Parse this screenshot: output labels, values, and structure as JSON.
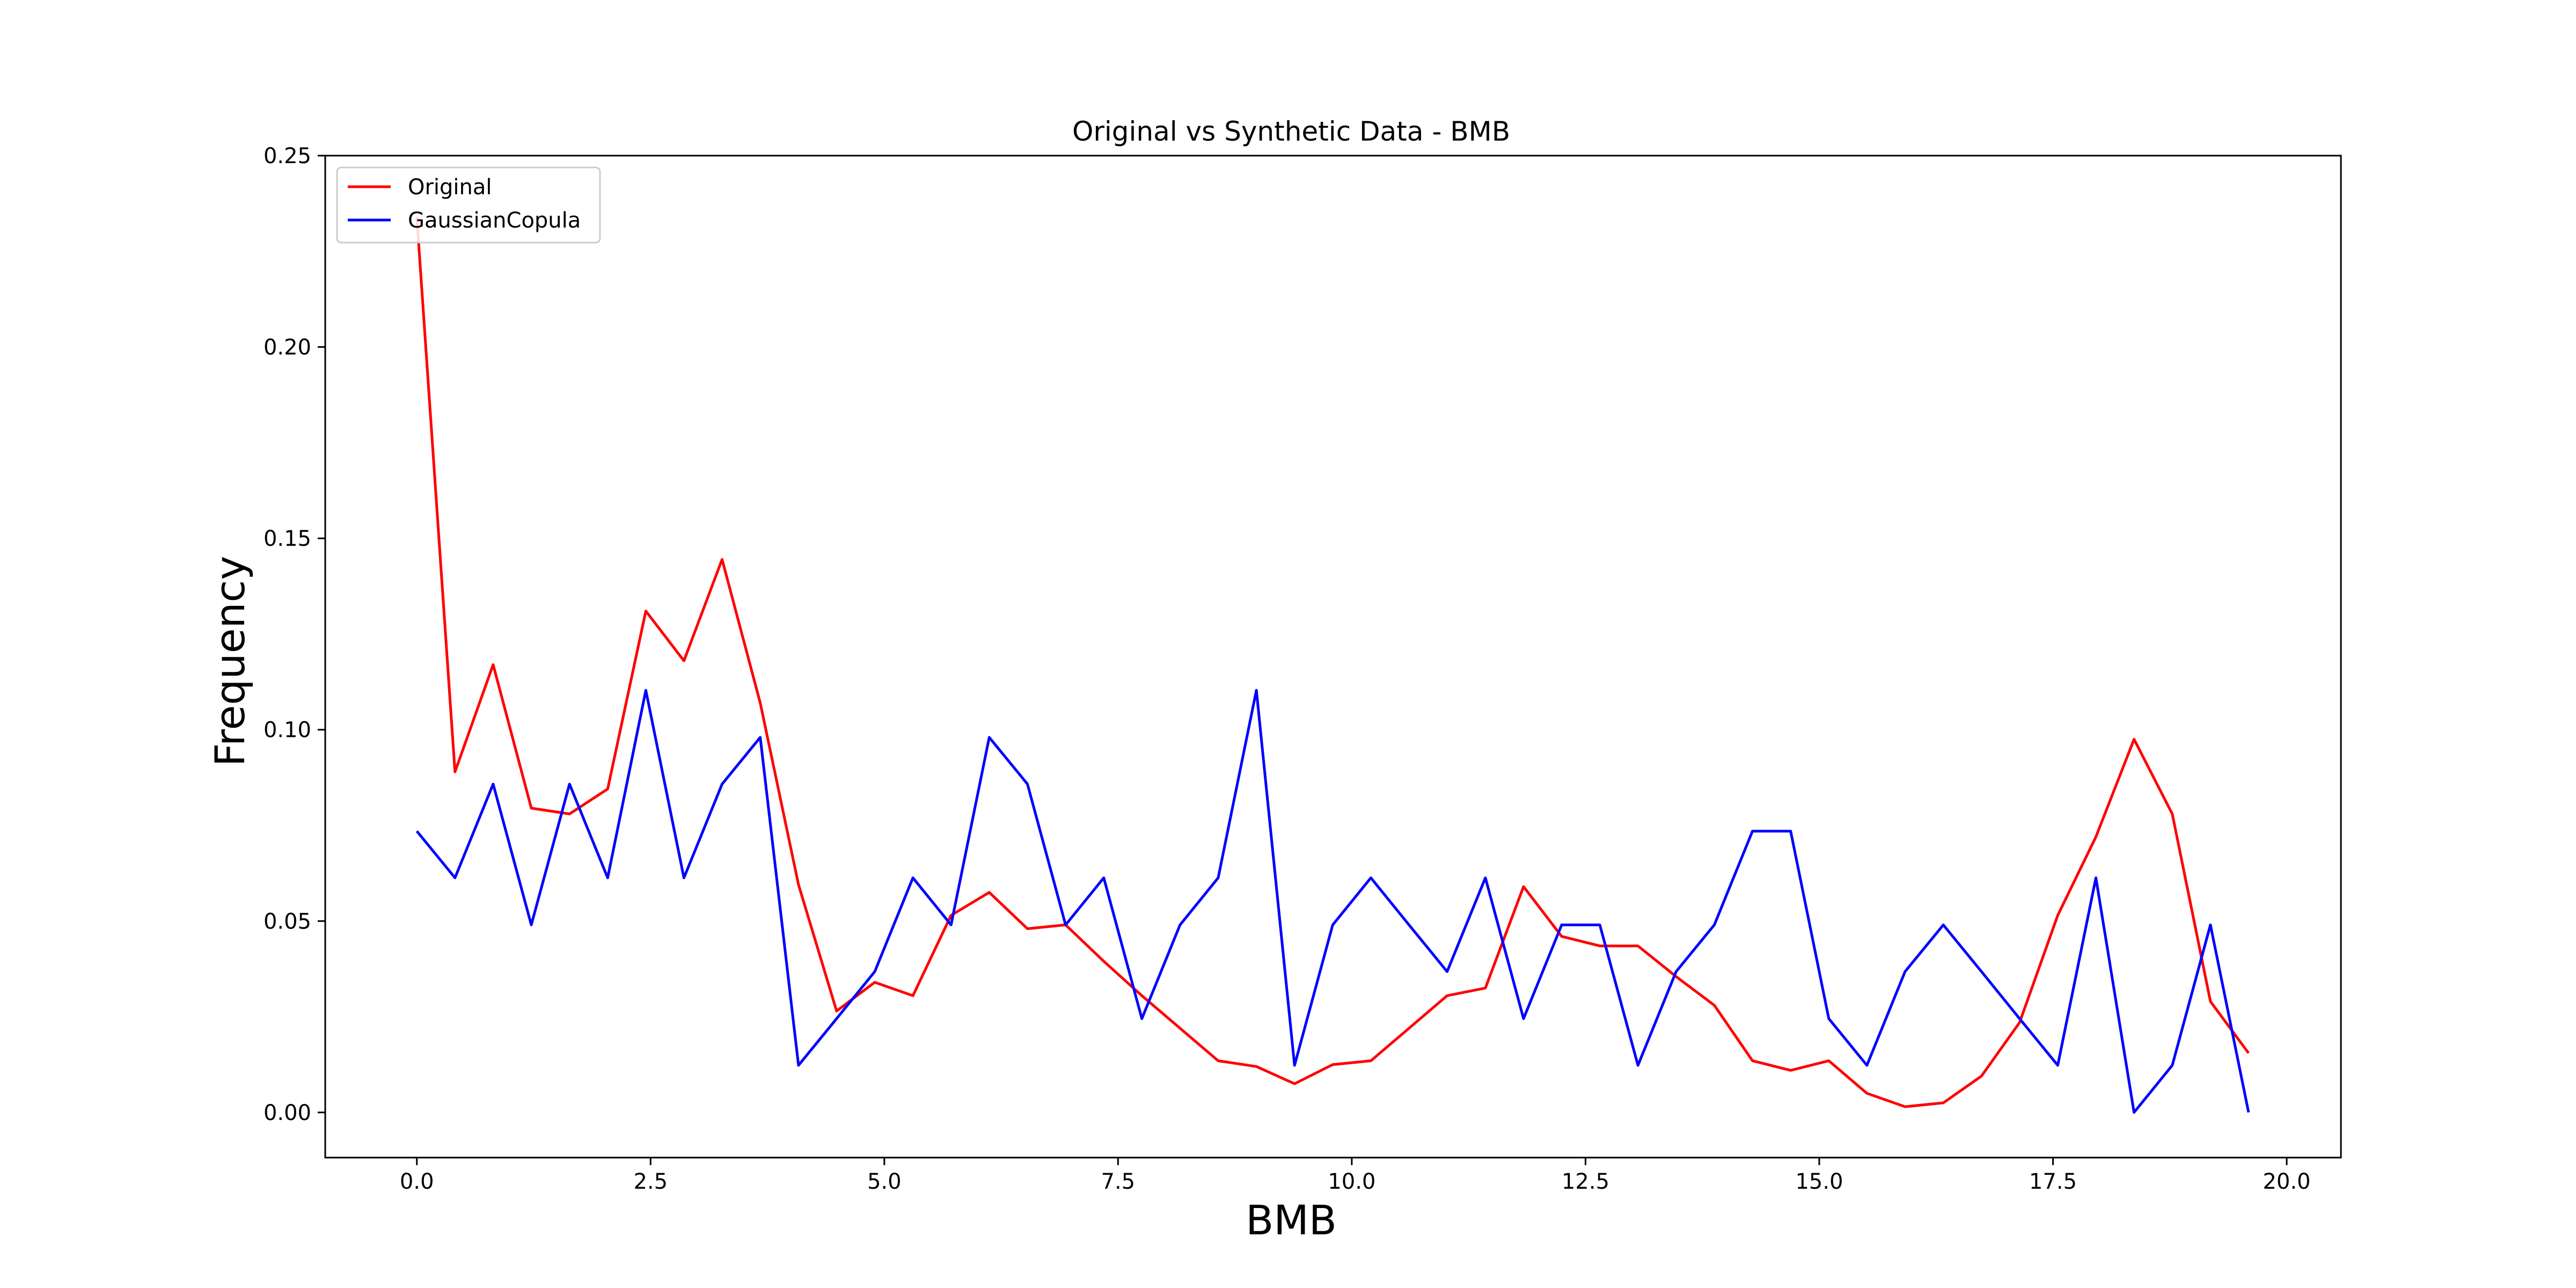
{
  "chart_data": {
    "type": "line",
    "title": "Original vs Synthetic Data - BMB",
    "xlabel": "BMB",
    "ylabel": "Frequency",
    "xlim": [
      -0.98,
      20.58
    ],
    "ylim": [
      -0.0118,
      0.25
    ],
    "xticks": [
      0.0,
      2.5,
      5.0,
      7.5,
      10.0,
      12.5,
      15.0,
      17.5,
      20.0
    ],
    "xtick_labels": [
      "0.0",
      "2.5",
      "5.0",
      "7.5",
      "10.0",
      "12.5",
      "15.0",
      "17.5",
      "20.0"
    ],
    "yticks": [
      0.0,
      0.05,
      0.1,
      0.15,
      0.2,
      0.25
    ],
    "ytick_labels": [
      "0.00",
      "0.05",
      "0.10",
      "0.15",
      "0.20",
      "0.25"
    ],
    "grid": false,
    "legend_position": "upper left",
    "x": [
      0.0,
      0.408,
      0.816,
      1.224,
      1.633,
      2.041,
      2.449,
      2.857,
      3.265,
      3.673,
      4.082,
      4.49,
      4.898,
      5.306,
      5.714,
      6.122,
      6.531,
      6.939,
      7.347,
      7.755,
      8.163,
      8.571,
      8.98,
      9.388,
      9.796,
      10.204,
      10.612,
      11.02,
      11.429,
      11.837,
      12.245,
      12.653,
      13.061,
      13.469,
      13.878,
      14.286,
      14.694,
      15.102,
      15.51,
      15.918,
      16.327,
      16.735,
      17.143,
      17.551,
      17.959,
      18.367,
      18.776,
      19.184,
      19.592
    ],
    "series": [
      {
        "name": "Original",
        "color": "#ff0000",
        "values": [
          0.234,
          0.089,
          0.117,
          0.0795,
          0.078,
          0.0845,
          0.131,
          0.118,
          0.1445,
          0.107,
          0.0595,
          0.0265,
          0.034,
          0.0305,
          0.0515,
          0.0575,
          0.048,
          0.049,
          0.0395,
          0.0305,
          0.022,
          0.0135,
          0.012,
          0.0075,
          0.0125,
          0.0135,
          0.022,
          0.0305,
          0.0325,
          0.059,
          0.046,
          0.0435,
          0.0435,
          0.0355,
          0.028,
          0.0135,
          0.011,
          0.0135,
          0.005,
          0.0015,
          0.0025,
          0.0095,
          0.0235,
          0.0515,
          0.072,
          0.0975,
          0.078,
          0.029,
          0.0155
        ]
      },
      {
        "name": "GaussianCopula",
        "color": "#0000ff",
        "values": [
          0.0735,
          0.0613,
          0.0858,
          0.049,
          0.0858,
          0.0613,
          0.1103,
          0.0613,
          0.0858,
          0.098,
          0.0123,
          0.0245,
          0.0368,
          0.0613,
          0.049,
          0.098,
          0.0858,
          0.049,
          0.0613,
          0.0245,
          0.049,
          0.0613,
          0.1103,
          0.0123,
          0.049,
          0.0613,
          0.049,
          0.0368,
          0.0613,
          0.0245,
          0.049,
          0.049,
          0.0123,
          0.0368,
          0.049,
          0.0735,
          0.0735,
          0.0245,
          0.0123,
          0.0368,
          0.049,
          0.0368,
          0.0245,
          0.0123,
          0.0613,
          0.0,
          0.0123,
          0.049,
          0.0
        ]
      }
    ]
  }
}
